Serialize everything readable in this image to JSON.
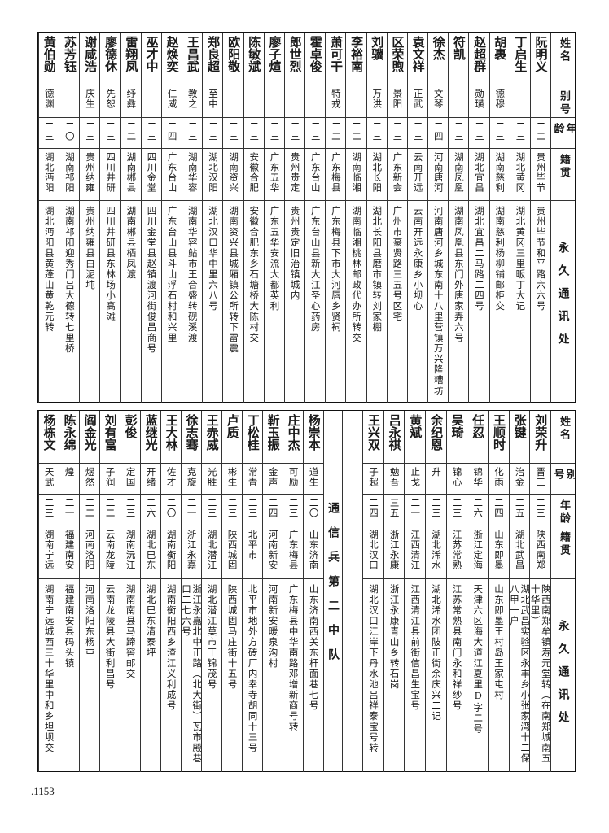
{
  "headers": {
    "name": "姓名",
    "alias": "别号",
    "age": "年龄",
    "hometown": "籍贯",
    "address": "永久通讯处"
  },
  "top": {
    "rows": [
      {
        "name": "阮明义",
        "alias": "",
        "age": "二二",
        "hometown": "贵州毕节",
        "address": "贵州毕节和平路六六号"
      },
      {
        "name": "丁启生",
        "alias": "",
        "age": "二三",
        "hometown": "湖北黄冈",
        "address": "湖北黄冈三里畈丁大记"
      },
      {
        "name": "胡裹",
        "alias": "德穆",
        "age": "二三",
        "hometown": "湖南慈利",
        "address": "湖南慈利杨柳铺邮柜交"
      },
      {
        "name": "赵超群",
        "alias": "勋璜",
        "age": "二三",
        "hometown": "湖北宜昌",
        "address": "湖北宜昌二马路二四号"
      },
      {
        "name": "符凯",
        "alias": "",
        "age": "二三",
        "hometown": "湖南凤凰",
        "address": "湖南凤凰县东门外唐家弄六号"
      },
      {
        "name": "徐杰",
        "alias": "文琴",
        "age": "二四",
        "hometown": "河南唐河",
        "address": "河南唐河乡城东南十八里营镇万兴隆糟坊"
      },
      {
        "name": "袁文祥",
        "alias": "正武",
        "age": "二三",
        "hometown": "云南开远",
        "address": "云南开远永康乡小坝心"
      },
      {
        "name": "区荣煦",
        "alias": "景阳",
        "age": "二三",
        "hometown": "广东新会",
        "address": "广州市豪贤路三五号区宅"
      },
      {
        "name": "刘骥",
        "alias": "万洪",
        "age": "二三",
        "hometown": "湖北长阳",
        "address": "湖北长阳县磨市镇转刘家棚"
      },
      {
        "name": "李裕南",
        "alias": "",
        "age": "二二",
        "hometown": "湖南临湘",
        "address": "湖南临湘桃林邮政代办所转交"
      },
      {
        "name": "萧可干",
        "alias": "特戎",
        "age": "二二",
        "hometown": "广东梅县",
        "address": "广东梅县下市大河唇乡贤祠"
      },
      {
        "name": "霍卓俊",
        "alias": "",
        "age": "二三",
        "hometown": "广东台山",
        "address": "广东台山县新大江圣心药房"
      },
      {
        "name": "郎世烈",
        "alias": "",
        "age": "二三",
        "hometown": "贵州贵定",
        "address": "贵州贵定旧治镇城内"
      },
      {
        "name": "廖子煊",
        "alias": "",
        "age": "二三",
        "hometown": "广东五华",
        "address": "广东五华安流大都英利"
      },
      {
        "name": "陈敏斌",
        "alias": "",
        "age": "二三",
        "hometown": "安徽合肥",
        "address": "安徽合肥东乡石塘桥大陈村交"
      },
      {
        "name": "欧阳敬",
        "alias": "",
        "age": "二三",
        "hometown": "湖南资兴",
        "address": "湖南资兴县城厢镇公所转下雷震"
      },
      {
        "name": "郑良超",
        "alias": "至中",
        "age": "二三",
        "hometown": "湖北汉阳",
        "address": "湖北汉口华中里六八号"
      },
      {
        "name": "王昌武",
        "alias": "教之",
        "age": "二三",
        "hometown": "湖南华容",
        "address": "湖南华容鲇市王合盛转砚溪渡"
      },
      {
        "name": "赵焕奕",
        "alias": "仁威",
        "age": "二四",
        "hometown": "广东台山",
        "address": "广东台山县斗山浮石村和兴里"
      },
      {
        "name": "巫才中",
        "alias": "",
        "age": "二三",
        "hometown": "四川金堂",
        "address": "四川金堂县赵镇渡河街俊昌商号"
      },
      {
        "name": "雷翔凤",
        "alias": "纾彝",
        "age": "二二",
        "hometown": "湖南郴县",
        "address": "湖南郴县栖凤渡"
      },
      {
        "name": "廖德休",
        "alias": "先恕",
        "age": "二三",
        "hometown": "四川井研",
        "address": "四川井研县东林场小高滩"
      },
      {
        "name": "谢咸浩",
        "alias": "庆生",
        "age": "二三",
        "hometown": "贵州纳雍",
        "address": "贵州纳雍县白泥坉"
      },
      {
        "name": "苏芳钰",
        "alias": "",
        "age": "二〇",
        "hometown": "湖南祁阳",
        "address": "湖南祁阳迎秀门吕大德转七里桥"
      },
      {
        "name": "黄伯勋",
        "alias": "德渊",
        "age": "二三",
        "hometown": "湖北沔阳",
        "address": "湖北沔阳县黄蓬山黄乾元转"
      }
    ]
  },
  "bottom": {
    "rows_right": [
      {
        "name": "刘荣升",
        "alias": "晋三",
        "age": "二三",
        "hometown": "陕西南郑",
        "address": "陕西南郑牟镇寿元堂转（在南郑城南五十华里）"
      },
      {
        "name": "张键",
        "alias": "治金",
        "age": "二五",
        "hometown": "湖北武昌",
        "address": "湖北武昌实验区永丰乡小张家湾十二保八甲一户"
      },
      {
        "name": "王顺时",
        "alias": "化雨",
        "age": "二四",
        "hometown": "山东即墨",
        "address": "山东即墨王村岛王家屯村"
      },
      {
        "name": "任忍",
        "alias": "锦华",
        "age": "二六",
        "hometown": "浙江定海",
        "address": "天津六区海大道江夏里D字二号"
      },
      {
        "name": "吴琦",
        "alias": "锦心",
        "age": "二三",
        "hometown": "江苏常熟",
        "address": "江苏常熟县南门永和祥纱号"
      },
      {
        "name": "余纪恩",
        "alias": "升",
        "age": "二三",
        "hometown": "湖北浠水",
        "address": "湖北浠水团陂正街余庆兴二记"
      },
      {
        "name": "黄斌",
        "alias": "止戈",
        "age": "二一",
        "hometown": "江西清江",
        "address": "江西清江县前街信昌生宝号"
      },
      {
        "name": "吕永祺",
        "alias": "勉吾",
        "age": "三五",
        "hometown": "浙江永康",
        "address": "浙江永康青山乡转石岗"
      },
      {
        "name": "王兴双",
        "alias": "子超",
        "age": "二四",
        "hometown": "湖北汉口",
        "address": "湖北汉口江岸下丹水池吕祥泰宝号转"
      }
    ],
    "section_label": "通信兵第二中队",
    "rows_left": [
      {
        "name": "杨崇本",
        "alias": "道生",
        "age": "二〇",
        "hometown": "山东济南",
        "address": "山东济南西关东杆面巷七号"
      },
      {
        "name": "庄中杰",
        "alias": "可励",
        "age": "二三",
        "hometown": "广东梅县",
        "address": "广东梅县中华南路邓增新商号转"
      },
      {
        "name": "靳玉振",
        "alias": "金声",
        "age": "二四",
        "hometown": "河南新安",
        "address": "河南新安暖泉沟村"
      },
      {
        "name": "丁松桂",
        "alias": "常青",
        "age": "二三",
        "hometown": "北平市",
        "address": "北平市地外方砖厂内幸寺胡同十三号"
      },
      {
        "name": "卢质",
        "alias": "彬生",
        "age": "二三",
        "hometown": "陕西城固",
        "address": "陕西城固马庄街十五号"
      },
      {
        "name": "王赤威",
        "alias": "光胜",
        "age": "二三",
        "hometown": "湖北潜江",
        "address": "湖北潜江莫市王锦茂号"
      },
      {
        "name": "徐志骞",
        "alias": "克旋",
        "age": "二一",
        "hometown": "浙江永嘉",
        "address": "浙江永嘉北中正路（北大街）瓦市殿巷口二七六号"
      },
      {
        "name": "王大林",
        "alias": "佐才",
        "age": "二〇",
        "hometown": "湖南衡阳",
        "address": "湖南衡阳西乡渣江义利成号"
      },
      {
        "name": "蓝继光",
        "alias": "开绪",
        "age": "二六",
        "hometown": "湖北巴东",
        "address": "湖北巴东清泰坪"
      },
      {
        "name": "彭俊",
        "alias": "定国",
        "age": "二三",
        "hometown": "湖南沅江",
        "address": "湖南南县马蹄窖邮交"
      },
      {
        "name": "刘有富",
        "alias": "子润",
        "age": "二二",
        "hometown": "云南龙陵",
        "address": "云南龙陵县大街利昌号"
      },
      {
        "name": "阎金光",
        "alias": "煜然",
        "age": "二二",
        "hometown": "河南洛阳",
        "address": "河南洛阳东杨屯"
      },
      {
        "name": "陈永绵",
        "alias": "煌",
        "age": "二一",
        "hometown": "福建南安",
        "address": "福建南安县码头镇"
      },
      {
        "name": "杨栋文",
        "alias": "天武",
        "age": "二三",
        "hometown": "湖南宁远",
        "address": "湖南宁远城西三十华里中和乡坦坝交"
      }
    ]
  },
  "page_number": ".1153"
}
